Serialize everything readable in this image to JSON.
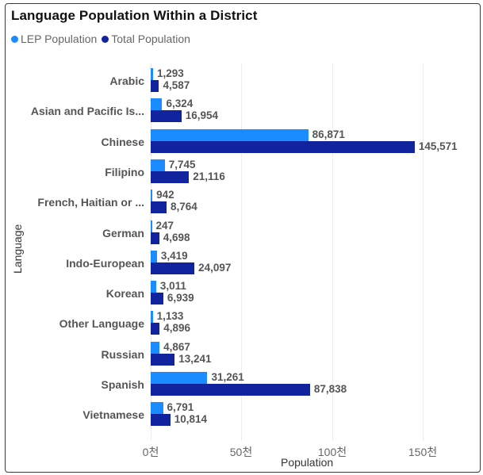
{
  "header": {
    "title": "Language Population Within a District"
  },
  "legend": {
    "items": [
      {
        "label": "LEP Population",
        "color": "#1a8cff"
      },
      {
        "label": "Total Population",
        "color": "#12239e"
      }
    ]
  },
  "axes": {
    "ylabel": "Language",
    "xlabel": "Population",
    "xticks": [
      "0천",
      "50천",
      "100천",
      "150천"
    ]
  },
  "chart_data": {
    "type": "bar",
    "orientation": "horizontal",
    "title": "Language Population Within a District",
    "xlabel": "Population",
    "ylabel": "Language",
    "xlim": [
      0,
      170000
    ],
    "xtick_values": [
      0,
      50000,
      100000,
      150000
    ],
    "xtick_labels": [
      "0천",
      "50천",
      "100천",
      "150천"
    ],
    "grid": true,
    "legend_position": "top-left",
    "categories": [
      "Arabic",
      "Asian and Pacific Is...",
      "Chinese",
      "Filipino",
      "French, Haitian or ...",
      "German",
      "Indo-European",
      "Korean",
      "Other Language",
      "Russian",
      "Spanish",
      "Vietnamese"
    ],
    "series": [
      {
        "name": "LEP Population",
        "color": "#1a8cff",
        "values": [
          1293,
          6324,
          86871,
          7745,
          942,
          247,
          3419,
          3011,
          1133,
          4867,
          31261,
          6791
        ],
        "labels": [
          "1,293",
          "6,324",
          "86,871",
          "7,745",
          "942",
          "247",
          "3,419",
          "3,011",
          "1,133",
          "4,867",
          "31,261",
          "6,791"
        ]
      },
      {
        "name": "Total Population",
        "color": "#12239e",
        "values": [
          4587,
          16954,
          145571,
          21116,
          8764,
          4698,
          24097,
          6939,
          4896,
          13241,
          87838,
          10814
        ],
        "labels": [
          "4,587",
          "16,954",
          "145,571",
          "21,116",
          "8,764",
          "4,698",
          "24,097",
          "6,939",
          "4,896",
          "13,241",
          "87,838",
          "10,814"
        ]
      }
    ]
  }
}
